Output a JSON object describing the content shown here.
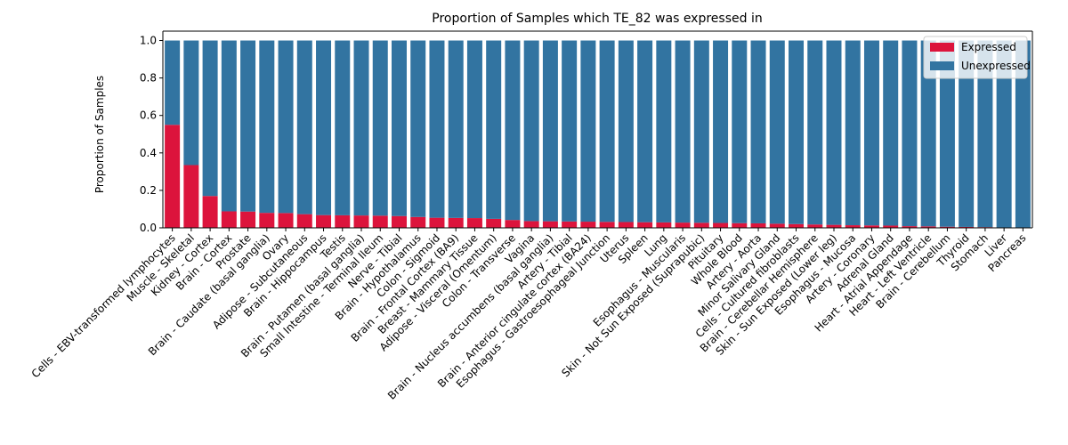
{
  "chart_data": {
    "type": "bar",
    "stacked": true,
    "title": "Proportion of Samples which TE_82 was expressed in",
    "xlabel": "",
    "ylabel": "Proportion of Samples",
    "ylim": [
      0,
      1.05
    ],
    "yticks": [
      "0.0",
      "0.2",
      "0.4",
      "0.6",
      "0.8",
      "1.0"
    ],
    "grid": false,
    "legend_position": "top-right",
    "categories": [
      "Cells - EBV-transformed lymphocytes",
      "Muscle - Skeletal",
      "Kidney - Cortex",
      "Brain - Cortex",
      "Prostate",
      "Brain - Caudate (basal ganglia)",
      "Ovary",
      "Adipose - Subcutaneous",
      "Brain - Hippocampus",
      "Testis",
      "Brain - Putamen (basal ganglia)",
      "Small Intestine - Terminal Ileum",
      "Nerve - Tibial",
      "Brain - Hypothalamus",
      "Colon - Sigmoid",
      "Brain - Frontal Cortex (BA9)",
      "Breast - Mammary Tissue",
      "Adipose - Visceral (Omentum)",
      "Colon - Transverse",
      "Vagina",
      "Brain - Nucleus accumbens (basal ganglia)",
      "Artery - Tibial",
      "Brain - Anterior cingulate cortex (BA24)",
      "Esophagus - Gastroesophageal Junction",
      "Uterus",
      "Spleen",
      "Lung",
      "Esophagus - Muscularis",
      "Skin - Not Sun Exposed (Suprapubic)",
      "Pituitary",
      "Whole Blood",
      "Artery - Aorta",
      "Minor Salivary Gland",
      "Cells - Cultured fibroblasts",
      "Brain - Cerebellar Hemisphere",
      "Skin - Sun Exposed (Lower leg)",
      "Esophagus - Mucosa",
      "Artery - Coronary",
      "Adrenal Gland",
      "Heart - Atrial Appendage",
      "Heart - Left Ventricle",
      "Brain - Cerebellum",
      "Thyroid",
      "Stomach",
      "Liver",
      "Pancreas"
    ],
    "series": [
      {
        "name": "Expressed",
        "color": "#dc143c",
        "values": [
          0.55,
          0.335,
          0.17,
          0.088,
          0.087,
          0.08,
          0.079,
          0.073,
          0.068,
          0.067,
          0.066,
          0.065,
          0.063,
          0.058,
          0.054,
          0.053,
          0.052,
          0.048,
          0.042,
          0.036,
          0.035,
          0.034,
          0.033,
          0.032,
          0.031,
          0.03,
          0.029,
          0.028,
          0.027,
          0.026,
          0.025,
          0.024,
          0.022,
          0.02,
          0.018,
          0.016,
          0.014,
          0.013,
          0.012,
          0.009,
          0.008,
          0.006,
          0.005,
          0.004,
          0.0,
          0.0
        ]
      },
      {
        "name": "Unexpressed",
        "color": "#3274a1",
        "values": [
          0.45,
          0.665,
          0.83,
          0.912,
          0.913,
          0.92,
          0.921,
          0.927,
          0.932,
          0.933,
          0.934,
          0.935,
          0.937,
          0.942,
          0.946,
          0.947,
          0.948,
          0.952,
          0.958,
          0.964,
          0.965,
          0.966,
          0.967,
          0.968,
          0.969,
          0.97,
          0.971,
          0.972,
          0.973,
          0.974,
          0.975,
          0.976,
          0.978,
          0.98,
          0.982,
          0.984,
          0.986,
          0.987,
          0.988,
          0.991,
          0.992,
          0.994,
          0.995,
          0.996,
          1.0,
          1.0
        ]
      }
    ]
  }
}
